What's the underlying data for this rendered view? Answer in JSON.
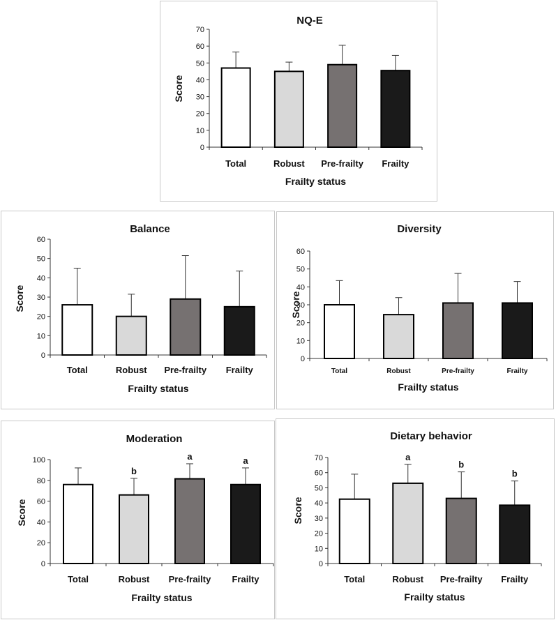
{
  "chart_data": [
    {
      "type": "bar",
      "title": "NQ-E",
      "xlabel": "Frailty status",
      "ylabel": "Score",
      "categories": [
        "Total",
        "Robust",
        "Pre-frailty",
        "Frailty"
      ],
      "values": [
        47,
        45,
        49,
        45.5
      ],
      "error_upper": [
        56.5,
        50.5,
        60.5,
        54.5
      ],
      "annotations": [
        "",
        "",
        "",
        ""
      ],
      "ylim": [
        0,
        70
      ],
      "yticks": [
        "0",
        "10",
        "20",
        "30",
        "40",
        "50",
        "60",
        "70"
      ],
      "colors": [
        "#ffffff",
        "#d9d9d9",
        "#767171",
        "#1a1a1a"
      ],
      "grid": false
    },
    {
      "type": "bar",
      "title": "Balance",
      "xlabel": "Frailty status",
      "ylabel": "Score",
      "categories": [
        "Total",
        "Robust",
        "Pre-frailty",
        "Frailty"
      ],
      "values": [
        26,
        20,
        29,
        25
      ],
      "error_upper": [
        45,
        31.5,
        51.5,
        43.5
      ],
      "annotations": [
        "",
        "",
        "",
        ""
      ],
      "ylim": [
        0,
        60
      ],
      "yticks": [
        "0",
        "10",
        "20",
        "30",
        "40",
        "50",
        "60"
      ],
      "colors": [
        "#ffffff",
        "#d9d9d9",
        "#767171",
        "#1a1a1a"
      ],
      "grid": false
    },
    {
      "type": "bar",
      "title": "Diversity",
      "xlabel": "Frailty status",
      "ylabel": "Score",
      "categories": [
        "Total",
        "Robust",
        "Pre-frailty",
        "Frailty"
      ],
      "values": [
        30,
        24.5,
        31,
        31
      ],
      "error_upper": [
        43.5,
        34,
        47.5,
        43
      ],
      "annotations": [
        "",
        "",
        "",
        ""
      ],
      "ylim": [
        0,
        60
      ],
      "yticks": [
        "0",
        "10",
        "20",
        "30",
        "40",
        "50",
        "60"
      ],
      "colors": [
        "#ffffff",
        "#d9d9d9",
        "#767171",
        "#1a1a1a"
      ],
      "grid": false
    },
    {
      "type": "bar",
      "title": "Moderation",
      "xlabel": "Frailty status",
      "ylabel": "Score",
      "categories": [
        "Total",
        "Robust",
        "Pre-frailty",
        "Frailty"
      ],
      "values": [
        76,
        66,
        81.5,
        76
      ],
      "error_upper": [
        92,
        82,
        96,
        92
      ],
      "annotations": [
        "",
        "b",
        "a",
        "a"
      ],
      "ylim": [
        0,
        100
      ],
      "yticks": [
        "0",
        "20",
        "40",
        "60",
        "80",
        "100"
      ],
      "colors": [
        "#ffffff",
        "#d9d9d9",
        "#767171",
        "#1a1a1a"
      ],
      "grid": false
    },
    {
      "type": "bar",
      "title": "Dietary behavior",
      "xlabel": "Frailty status",
      "ylabel": "Score",
      "categories": [
        "Total",
        "Robust",
        "Pre-frailty",
        "Frailty"
      ],
      "values": [
        42.5,
        53,
        43,
        38.5
      ],
      "error_upper": [
        59,
        65.5,
        60.5,
        54.5
      ],
      "annotations": [
        "",
        "a",
        "b",
        "b"
      ],
      "ylim": [
        0,
        70
      ],
      "yticks": [
        "0",
        "10",
        "20",
        "30",
        "40",
        "50",
        "60",
        "70"
      ],
      "colors": [
        "#ffffff",
        "#d9d9d9",
        "#767171",
        "#1a1a1a"
      ],
      "grid": false
    }
  ]
}
